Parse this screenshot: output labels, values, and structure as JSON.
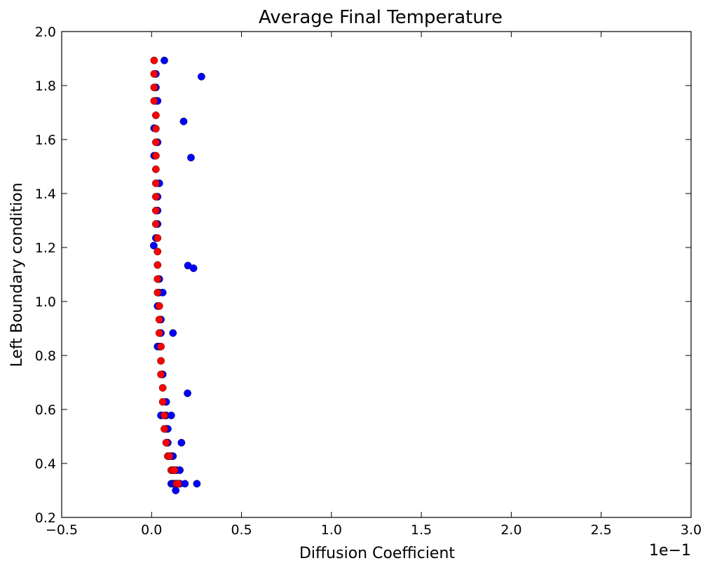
{
  "chart_data": {
    "type": "scatter",
    "title": "Average Final Temperature",
    "xlabel": "Diffusion Coefficient",
    "ylabel": "Left Boundary condition",
    "x_offset_label": "1e−1",
    "xlim": [
      -0.05,
      0.3
    ],
    "ylim": [
      0.2,
      2.0
    ],
    "x_ticks": [
      -0.05,
      0.0,
      0.05,
      0.1,
      0.15,
      0.2,
      0.25,
      0.3
    ],
    "x_tick_labels": [
      "−0.5",
      "0.0",
      "0.5",
      "1.0",
      "1.5",
      "2.0",
      "2.5",
      "3.0"
    ],
    "y_ticks": [
      0.2,
      0.4,
      0.6,
      0.8,
      1.0,
      1.2,
      1.4,
      1.6,
      1.8,
      2.0
    ],
    "y_tick_labels": [
      "0.2",
      "0.4",
      "0.6",
      "0.8",
      "1.0",
      "1.2",
      "1.4",
      "1.6",
      "1.8",
      "2.0"
    ],
    "grid": false,
    "legend": "none",
    "series": [
      {
        "color": "#0000ff",
        "points": [
          [
            0.0071,
            1.893
          ],
          [
            0.0277,
            1.833
          ],
          [
            0.0178,
            1.667
          ],
          [
            0.0219,
            1.533
          ],
          [
            0.0202,
            1.133
          ],
          [
            0.0233,
            1.123
          ],
          [
            0.02,
            0.66
          ],
          [
            0.0119,
            0.883
          ],
          [
            0.0252,
            0.325
          ],
          [
            0.0185,
            0.325
          ],
          [
            0.0166,
            0.477
          ],
          [
            0.0024,
            1.843
          ],
          [
            0.0024,
            1.793
          ],
          [
            0.0024,
            1.743
          ],
          [
            0.0033,
            1.743
          ],
          [
            0.0014,
            1.642
          ],
          [
            0.0033,
            1.59
          ],
          [
            0.0014,
            1.54
          ],
          [
            0.0043,
            1.438
          ],
          [
            0.0033,
            1.388
          ],
          [
            0.0033,
            1.337
          ],
          [
            0.0033,
            1.287
          ],
          [
            0.0024,
            1.235
          ],
          [
            0.0012,
            1.207
          ],
          [
            0.0043,
            1.083
          ],
          [
            0.0043,
            1.033
          ],
          [
            0.0062,
            1.033
          ],
          [
            0.0033,
            0.983
          ],
          [
            0.0052,
            0.933
          ],
          [
            0.0052,
            0.883
          ],
          [
            0.0033,
            0.833
          ],
          [
            0.0043,
            0.833
          ],
          [
            0.0062,
            0.73
          ],
          [
            0.0081,
            0.628
          ],
          [
            0.0081,
            0.578
          ],
          [
            0.0052,
            0.578
          ],
          [
            0.0109,
            0.578
          ],
          [
            0.0081,
            0.528
          ],
          [
            0.009,
            0.528
          ],
          [
            0.009,
            0.477
          ],
          [
            0.0109,
            0.427
          ],
          [
            0.0119,
            0.427
          ],
          [
            0.0138,
            0.375
          ],
          [
            0.0157,
            0.375
          ],
          [
            0.0109,
            0.325
          ],
          [
            0.0119,
            0.325
          ],
          [
            0.0128,
            0.325
          ],
          [
            0.0157,
            0.325
          ],
          [
            0.0134,
            0.3
          ]
        ]
      },
      {
        "color": "#ff0000",
        "points": [
          [
            0.0014,
            1.893
          ],
          [
            0.0014,
            1.843
          ],
          [
            0.0014,
            1.793
          ],
          [
            0.0014,
            1.743
          ],
          [
            0.0024,
            1.69
          ],
          [
            0.0024,
            1.64
          ],
          [
            0.0024,
            1.59
          ],
          [
            0.0024,
            1.54
          ],
          [
            0.0024,
            1.49
          ],
          [
            0.0024,
            1.438
          ],
          [
            0.0024,
            1.388
          ],
          [
            0.0024,
            1.337
          ],
          [
            0.0024,
            1.287
          ],
          [
            0.0033,
            1.235
          ],
          [
            0.0033,
            1.185
          ],
          [
            0.0033,
            1.135
          ],
          [
            0.0033,
            1.083
          ],
          [
            0.0033,
            1.033
          ],
          [
            0.0043,
            0.983
          ],
          [
            0.0043,
            0.933
          ],
          [
            0.0043,
            0.883
          ],
          [
            0.0052,
            0.833
          ],
          [
            0.0052,
            0.78
          ],
          [
            0.0052,
            0.73
          ],
          [
            0.0062,
            0.68
          ],
          [
            0.0062,
            0.628
          ],
          [
            0.0071,
            0.578
          ],
          [
            0.0071,
            0.528
          ],
          [
            0.0081,
            0.477
          ],
          [
            0.009,
            0.427
          ],
          [
            0.01,
            0.427
          ],
          [
            0.0109,
            0.375
          ],
          [
            0.0119,
            0.375
          ],
          [
            0.0128,
            0.375
          ],
          [
            0.0138,
            0.325
          ],
          [
            0.0147,
            0.325
          ]
        ]
      }
    ]
  }
}
